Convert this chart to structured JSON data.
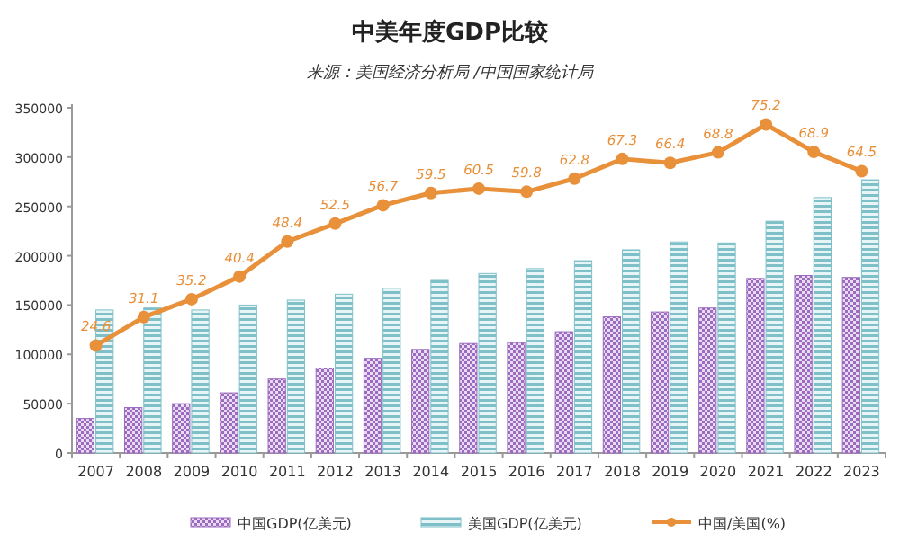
{
  "chart_data": {
    "type": "bar",
    "title": "中美年度GDP比较",
    "subtitle": "来源：美国经济分析局 /中国国家统计局",
    "categories": [
      "2007",
      "2008",
      "2009",
      "2010",
      "2011",
      "2012",
      "2013",
      "2014",
      "2015",
      "2016",
      "2017",
      "2018",
      "2019",
      "2020",
      "2021",
      "2022",
      "2023"
    ],
    "series": [
      {
        "name": "中国GDP(亿美元)",
        "color": "#9b6bbf",
        "values": [
          35000,
          46000,
          50000,
          61000,
          75000,
          86000,
          96000,
          105000,
          111000,
          112000,
          123000,
          138000,
          143000,
          147000,
          177000,
          180000,
          178000
        ]
      },
      {
        "name": "美国GDP(亿美元)",
        "color": "#7fc0c8",
        "values": [
          145000,
          147000,
          145000,
          150000,
          155000,
          161000,
          167000,
          175000,
          182000,
          187000,
          195000,
          206000,
          214000,
          213000,
          235000,
          259000,
          277000
        ]
      },
      {
        "name": "中国/美国(%)",
        "type": "line",
        "axis": "y2",
        "color": "#e8903a",
        "values": [
          24.6,
          31.1,
          35.2,
          40.4,
          48.4,
          52.5,
          56.7,
          59.5,
          60.5,
          59.8,
          62.8,
          67.3,
          66.4,
          68.8,
          75.2,
          68.9,
          64.5
        ],
        "value_labels": [
          "24.6",
          "31.1",
          "35.2",
          "40.4",
          "48.4",
          "52.5",
          "56.7",
          "59.5",
          "60.5",
          "59.8",
          "62.8",
          "67.3",
          "66.4",
          "68.8",
          "75.2",
          "68.9",
          "64.5"
        ]
      }
    ],
    "ylim": [
      0,
      350000
    ],
    "yticks": [
      0,
      50000,
      100000,
      150000,
      200000,
      250000,
      300000,
      350000
    ],
    "y2lim": [
      0,
      79
    ],
    "marker": "circle",
    "legend": "bottom",
    "grid": false
  }
}
